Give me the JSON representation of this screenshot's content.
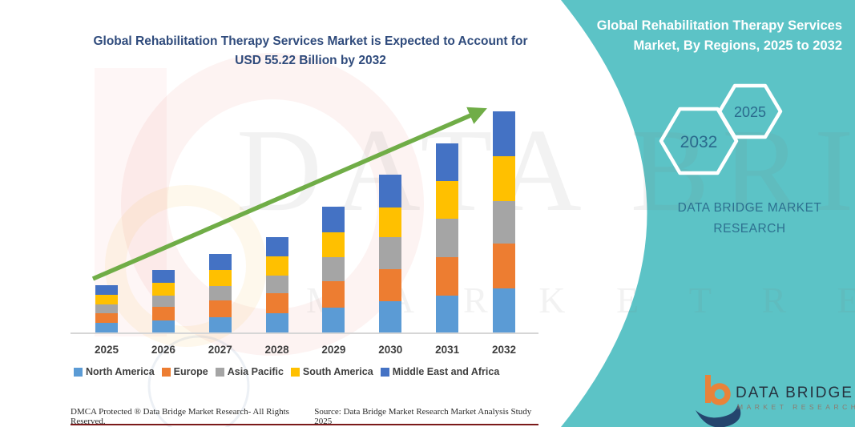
{
  "main_title": "Global Rehabilitation Therapy Services Market is Expected to Account for USD 55.22 Billion by 2032",
  "panel": {
    "title": "Global Rehabilitation Therapy Services Market, By Regions, 2025 to 2032",
    "hexagons": [
      {
        "label": "2032"
      },
      {
        "label": "2025"
      }
    ],
    "brand_line1": "DATA BRIDGE MARKET",
    "brand_line2": "RESEARCH",
    "background_color": "#5CC3C6"
  },
  "watermark": {
    "line1": "DATA BRIDGE",
    "line2": "M A R K E T   R E S E A R C H"
  },
  "logo": {
    "name": "DATA BRIDGE",
    "subname": "MARKET RESEARCH"
  },
  "footer": {
    "left": "DMCA Protected ® Data Bridge Market Research-  All Rights Reserved.",
    "right": "Source: Data Bridge Market Research  Market Analysis Study 2025"
  },
  "chart_data": {
    "type": "bar",
    "stacked": true,
    "unit": "USD Billion (estimated from bar heights; no y-axis shown)",
    "title": "Global Rehabilitation Therapy Services Market is Expected to Account for USD 55.22 Billion by 2032",
    "xlabel": "",
    "ylabel": "",
    "gridlines": false,
    "legend_position": "bottom",
    "categories": [
      "2025",
      "2026",
      "2027",
      "2028",
      "2029",
      "2030",
      "2031",
      "2032"
    ],
    "series": [
      {
        "name": "North America",
        "color": "#5B9BD5",
        "values": [
          2.4,
          3.1,
          3.9,
          4.8,
          6.2,
          7.8,
          9.3,
          11.0
        ]
      },
      {
        "name": "Europe",
        "color": "#ED7D31",
        "values": [
          2.4,
          3.3,
          4.1,
          5.0,
          6.7,
          8.1,
          9.6,
          11.3
        ]
      },
      {
        "name": "Asia Pacific",
        "color": "#A5A5A5",
        "values": [
          2.2,
          2.9,
          3.7,
          4.5,
          5.9,
          8.0,
          9.5,
          10.6
        ]
      },
      {
        "name": "South America",
        "color": "#FFC000",
        "values": [
          2.4,
          3.1,
          3.9,
          4.8,
          6.3,
          7.3,
          9.4,
          11.2
        ]
      },
      {
        "name": "Middle East and Africa",
        "color": "#4472C4",
        "values": [
          2.4,
          3.2,
          4.0,
          4.7,
          6.3,
          8.2,
          9.4,
          11.12
        ]
      }
    ],
    "totals": [
      11.8,
      15.6,
      19.6,
      23.8,
      31.4,
      39.4,
      47.2,
      55.22
    ],
    "annotations": [
      "upward green trend arrow across bar tops"
    ],
    "trend_arrow_color": "#70AD47"
  },
  "colors": {
    "title_blue": "#2F4B7C",
    "teal_panel": "#5CC3C6",
    "axis_gray": "#d6d6d6",
    "label_gray": "#3f3f3f",
    "footer_redline": "#7b1a1a"
  }
}
